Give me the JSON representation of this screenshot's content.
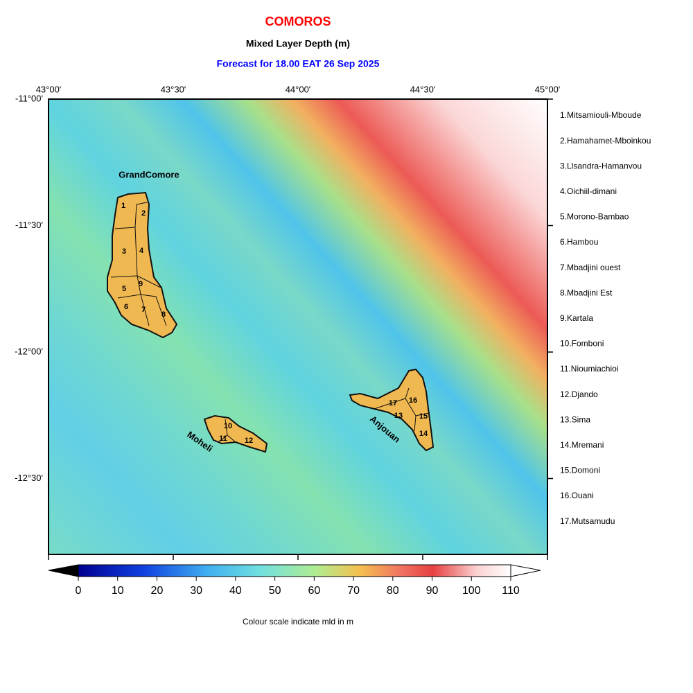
{
  "header": {
    "title": "COMOROS",
    "subtitle": "Mixed Layer Depth (m)",
    "forecast": "Forecast for  18.00 EAT 26 Sep 2025"
  },
  "map": {
    "lon_labels": [
      "43°00'",
      "43°30'",
      "44°00'",
      "44°30'",
      "45°00'"
    ],
    "lat_labels": [
      "-11°00'",
      "-11°30'",
      "-12°00'",
      "-12°30'"
    ],
    "island_labels": [
      "GrandComore",
      "Moheli",
      "Anjouan"
    ],
    "region_numbers": [
      1,
      2,
      3,
      4,
      5,
      6,
      7,
      8,
      9,
      10,
      11,
      12,
      13,
      14,
      15,
      16,
      17
    ]
  },
  "legend": [
    "1.Mitsamiouli-Mboude",
    "2.Hamahamet-Mboinkou",
    "3.Llsandra-Hamanvou",
    "4.Oichiil-dimani",
    "5.Morono-Bambao",
    "6.Hambou",
    "7.Mbadjini ouest",
    "8.Mbadjini Est",
    "9.Kartala",
    "10.Fomboni",
    "11.Nioumiachioi",
    "12.Djando",
    "13.Sima",
    "14.Mremani",
    "15.Domoni",
    "16.Ouani",
    "17.Mutsamudu"
  ],
  "colorbar": {
    "ticks": [
      0,
      10,
      20,
      30,
      40,
      50,
      60,
      70,
      80,
      90,
      100,
      110
    ],
    "caption": "Colour scale indicate mld in m"
  }
}
